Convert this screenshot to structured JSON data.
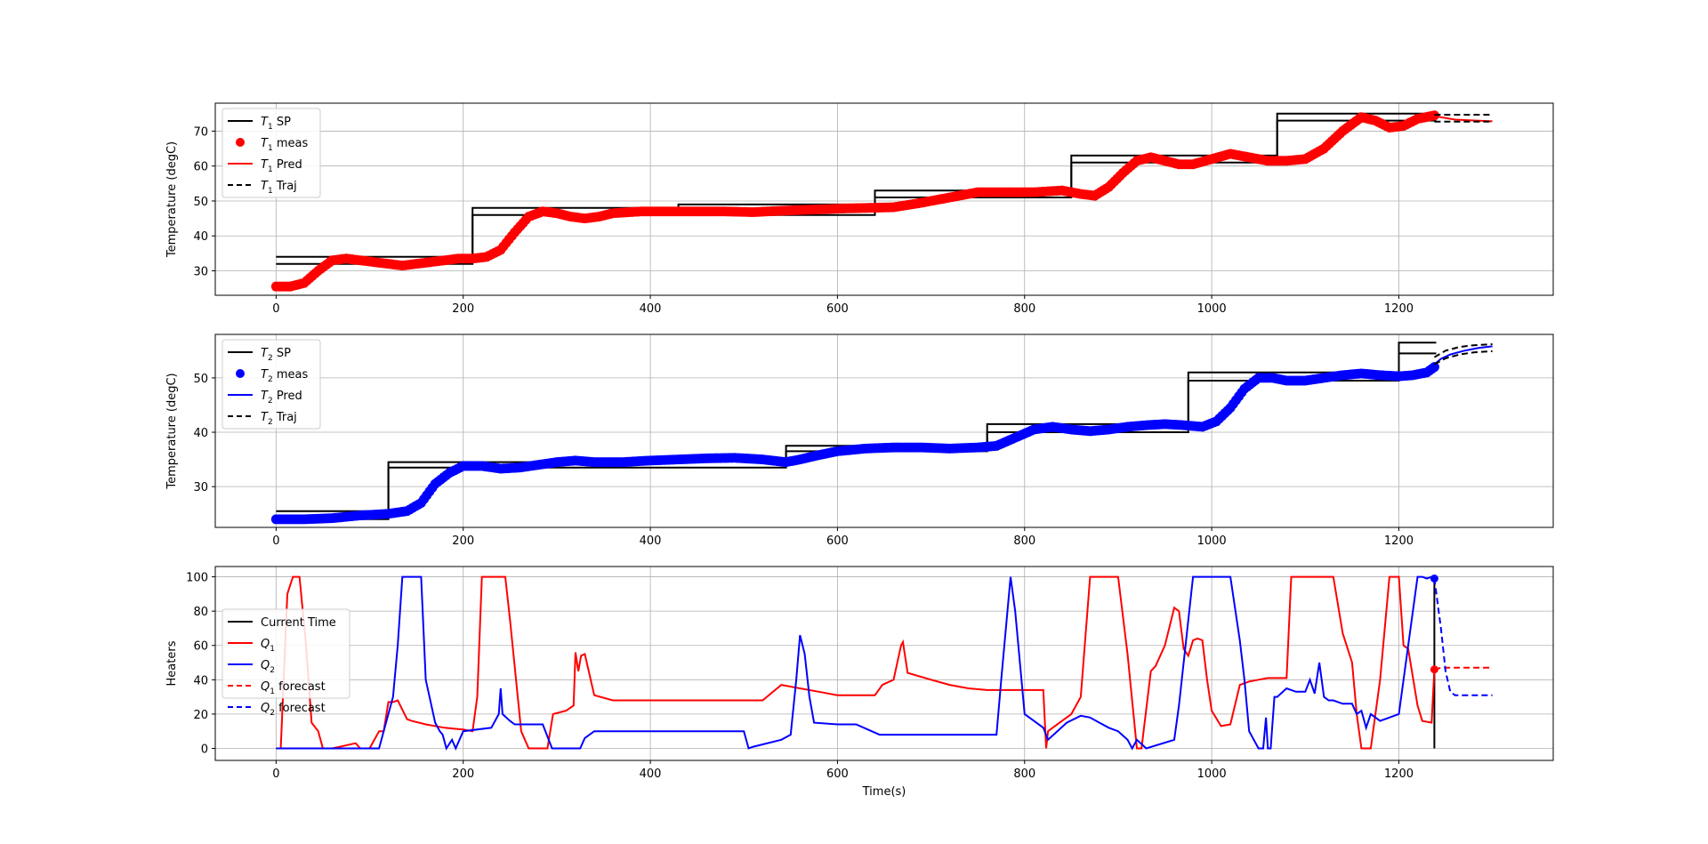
{
  "chart_data": [
    {
      "type": "line",
      "ylabel": "Temperature (degC)",
      "xlabel": "",
      "xlim": [
        -65,
        1365
      ],
      "ylim": [
        23,
        78
      ],
      "xticks": [
        0,
        200,
        400,
        600,
        800,
        1000,
        1200
      ],
      "yticks": [
        30,
        40,
        50,
        60,
        70
      ],
      "grid": true,
      "legend_position": "top-left",
      "series": [
        {
          "name": "T1 SP",
          "sub": "1",
          "lab": "SP",
          "style": "solid",
          "color": "#000000",
          "x": [
            0,
            210,
            210,
            640,
            640,
            850,
            850,
            1070,
            1070,
            1240
          ],
          "y": [
            32,
            32,
            46,
            46,
            51,
            51,
            61,
            61,
            73,
            73
          ]
        },
        {
          "name": "T1 SP (upper)",
          "style": "solid",
          "color": "#000000",
          "legend": false,
          "x": [
            0,
            210,
            210,
            430,
            430,
            640,
            640,
            850,
            850,
            1070,
            1070,
            1240
          ],
          "y": [
            34,
            34,
            48,
            48,
            49,
            49,
            53,
            53,
            63,
            63,
            75,
            75
          ]
        },
        {
          "name": "T1 meas",
          "sub": "1",
          "lab": "meas",
          "style": "markers",
          "color": "#ff0000",
          "x": [
            0,
            15,
            30,
            45,
            60,
            75,
            90,
            105,
            120,
            135,
            150,
            165,
            180,
            195,
            210,
            225,
            240,
            255,
            270,
            285,
            300,
            315,
            330,
            345,
            360,
            390,
            420,
            450,
            480,
            510,
            540,
            570,
            600,
            630,
            660,
            690,
            720,
            750,
            780,
            810,
            840,
            860,
            875,
            890,
            905,
            920,
            935,
            950,
            965,
            980,
            1000,
            1020,
            1040,
            1060,
            1080,
            1100,
            1120,
            1140,
            1160,
            1175,
            1190,
            1205,
            1220,
            1238
          ],
          "y": [
            25.5,
            25.5,
            26.5,
            30,
            33,
            33.5,
            33,
            32.5,
            32,
            31.5,
            32,
            32.5,
            33,
            33.5,
            33.5,
            34,
            36,
            41,
            45.5,
            47,
            46.5,
            45.5,
            45,
            45.5,
            46.5,
            47,
            47,
            47,
            47,
            46.8,
            47.2,
            47.5,
            47.8,
            48,
            48.2,
            49.5,
            51,
            52.5,
            52.5,
            52.5,
            53,
            52,
            51.5,
            54,
            58,
            61.5,
            62.5,
            61.5,
            60.5,
            60.5,
            62,
            63.5,
            62.5,
            61.5,
            61.5,
            62,
            65,
            70,
            74,
            73,
            71,
            71.5,
            73.5,
            74.5
          ]
        },
        {
          "name": "T1 Pred",
          "sub": "1",
          "lab": "Pred",
          "style": "solid",
          "color": "#ff0000",
          "x": [
            1238,
            1260,
            1300
          ],
          "y": [
            74.3,
            73.3,
            72.8
          ]
        },
        {
          "name": "T1 Traj",
          "sub": "1",
          "lab": "Traj",
          "style": "dashed",
          "color": "#000000",
          "x": [
            1238,
            1300
          ],
          "y": [
            72.7,
            72.7
          ]
        },
        {
          "name": "T1 Traj (upper)",
          "style": "dashed",
          "color": "#000000",
          "legend": false,
          "x": [
            1238,
            1300
          ],
          "y": [
            74.7,
            74.7
          ]
        }
      ]
    },
    {
      "type": "line",
      "ylabel": "Temperature (degC)",
      "xlabel": "",
      "xlim": [
        -65,
        1365
      ],
      "ylim": [
        22.5,
        58
      ],
      "xticks": [
        0,
        200,
        400,
        600,
        800,
        1000,
        1200
      ],
      "yticks": [
        30,
        40,
        50
      ],
      "grid": true,
      "legend_position": "top-left",
      "series": [
        {
          "name": "T2 SP",
          "sub": "2",
          "lab": "SP",
          "style": "solid",
          "color": "#000000",
          "x": [
            0,
            120,
            120,
            545,
            545,
            760,
            760,
            975,
            975,
            1200,
            1200,
            1240
          ],
          "y": [
            24,
            24,
            33.5,
            33.5,
            36.5,
            36.5,
            40,
            40,
            49.5,
            49.5,
            54.5,
            54.5
          ]
        },
        {
          "name": "T2 SP (upper)",
          "style": "solid",
          "color": "#000000",
          "legend": false,
          "x": [
            0,
            120,
            120,
            330,
            330,
            545,
            545,
            760,
            760,
            975,
            975,
            1200,
            1200,
            1240
          ],
          "y": [
            25.5,
            25.5,
            34.5,
            34.5,
            35,
            35,
            37.5,
            37.5,
            41.5,
            41.5,
            51,
            51,
            56.5,
            56.5
          ]
        },
        {
          "name": "T2 meas",
          "sub": "2",
          "lab": "meas",
          "style": "markers",
          "color": "#0000ff",
          "x": [
            0,
            30,
            60,
            90,
            120,
            140,
            155,
            170,
            185,
            200,
            220,
            240,
            260,
            280,
            300,
            320,
            340,
            370,
            400,
            430,
            460,
            490,
            520,
            545,
            560,
            580,
            600,
            630,
            660,
            690,
            720,
            750,
            770,
            790,
            810,
            830,
            850,
            870,
            890,
            910,
            930,
            950,
            970,
            990,
            1005,
            1020,
            1035,
            1050,
            1065,
            1080,
            1100,
            1120,
            1140,
            1160,
            1180,
            1200,
            1215,
            1230,
            1238
          ],
          "y": [
            24,
            24,
            24.2,
            24.7,
            25,
            25.5,
            27,
            30.5,
            32.5,
            33.8,
            33.8,
            33.3,
            33.5,
            34,
            34.5,
            34.8,
            34.5,
            34.5,
            34.8,
            35,
            35.2,
            35.3,
            35,
            34.5,
            35,
            35.8,
            36.5,
            37,
            37.2,
            37.2,
            37,
            37.2,
            37.5,
            39,
            40.5,
            41,
            40.5,
            40.2,
            40.5,
            41,
            41.3,
            41.5,
            41.3,
            41,
            42,
            44.5,
            48,
            50,
            50,
            49.5,
            49.5,
            50,
            50.5,
            50.8,
            50.5,
            50.3,
            50.5,
            51,
            52
          ]
        },
        {
          "name": "T2 Pred",
          "sub": "2",
          "lab": "Pred",
          "style": "solid",
          "color": "#0000ff",
          "x": [
            1238,
            1245,
            1255,
            1270,
            1285,
            1300
          ],
          "y": [
            52.5,
            53.5,
            54.3,
            55,
            55.5,
            55.8
          ]
        },
        {
          "name": "T2 Traj",
          "sub": "2",
          "lab": "Traj",
          "style": "dashed",
          "color": "#000000",
          "x": [
            1238,
            1250,
            1265,
            1280,
            1300
          ],
          "y": [
            52.5,
            53.6,
            54.3,
            54.7,
            54.9
          ]
        },
        {
          "name": "T2 Traj (upper)",
          "style": "dashed",
          "color": "#000000",
          "legend": false,
          "x": [
            1238,
            1250,
            1265,
            1280,
            1300
          ],
          "y": [
            53.8,
            55,
            55.7,
            56,
            56.2
          ]
        }
      ]
    },
    {
      "type": "line",
      "ylabel": "Heaters",
      "xlabel": "Time(s)",
      "xlim": [
        -65,
        1365
      ],
      "ylim": [
        -7,
        106
      ],
      "xticks": [
        0,
        200,
        400,
        600,
        800,
        1000,
        1200
      ],
      "yticks": [
        0,
        20,
        40,
        60,
        80,
        100
      ],
      "grid": true,
      "legend_position": "center-left",
      "series": [
        {
          "name": "Current Time",
          "lab": "Current Time",
          "style": "solid",
          "color": "#000000",
          "x": [
            1238,
            1238
          ],
          "y": [
            0,
            100
          ]
        },
        {
          "name": "Q1",
          "sub": "1",
          "lab": "",
          "style": "solid",
          "color": "#ff0000",
          "x": [
            0,
            5,
            12,
            18,
            25,
            32,
            38,
            45,
            50,
            60,
            85,
            90,
            100,
            110,
            115,
            120,
            125,
            130,
            140,
            145,
            160,
            180,
            200,
            210,
            215,
            220,
            225,
            245,
            250,
            262,
            270,
            290,
            296,
            310,
            318,
            320,
            323,
            326,
            330,
            340,
            360,
            400,
            520,
            540,
            560,
            580,
            600,
            640,
            648,
            660,
            668,
            670,
            675,
            700,
            720,
            740,
            760,
            800,
            820,
            823,
            825,
            830,
            850,
            860,
            870,
            900,
            910,
            920,
            925,
            935,
            940,
            950,
            960,
            965,
            970,
            975,
            980,
            985,
            990,
            995,
            1000,
            1010,
            1020,
            1030,
            1040,
            1050,
            1060,
            1080,
            1085,
            1095,
            1130,
            1140,
            1150,
            1155,
            1160,
            1170,
            1180,
            1190,
            1200,
            1205,
            1210,
            1220,
            1225,
            1235,
            1238
          ],
          "y": [
            0,
            0,
            90,
            100,
            100,
            60,
            15,
            10,
            0,
            0,
            3,
            0,
            0,
            10,
            10,
            27,
            27,
            28,
            17,
            16,
            14,
            12,
            11,
            10,
            30,
            100,
            100,
            100,
            75,
            10,
            0,
            0,
            20,
            22,
            25,
            56,
            45,
            54,
            55,
            31,
            28,
            28,
            28,
            37,
            35,
            33,
            31,
            31,
            37,
            40,
            60,
            62,
            44,
            40,
            37,
            35,
            34,
            34,
            34,
            0,
            10,
            12,
            20,
            30,
            100,
            100,
            55,
            0,
            0,
            45,
            48,
            60,
            82,
            80,
            58,
            54,
            63,
            64,
            63,
            40,
            22,
            13,
            14,
            37,
            39,
            40,
            41,
            41,
            100,
            100,
            100,
            67,
            50,
            20,
            0,
            0,
            40,
            100,
            100,
            60,
            58,
            25,
            16,
            15,
            46
          ]
        },
        {
          "name": "Q2",
          "sub": "2",
          "lab": "",
          "style": "solid",
          "color": "#0000ff",
          "x": [
            0,
            110,
            125,
            130,
            135,
            140,
            155,
            160,
            170,
            175,
            178,
            182,
            188,
            192,
            200,
            230,
            238,
            240,
            242,
            250,
            255,
            285,
            295,
            325,
            330,
            340,
            350,
            500,
            505,
            510,
            540,
            550,
            556,
            560,
            565,
            570,
            575,
            600,
            620,
            645,
            650,
            770,
            775,
            785,
            790,
            800,
            810,
            820,
            825,
            835,
            845,
            860,
            870,
            880,
            890,
            900,
            910,
            915,
            920,
            930,
            960,
            965,
            972,
            980,
            990,
            1000,
            1020,
            1030,
            1035,
            1040,
            1050,
            1055,
            1058,
            1060,
            1063,
            1067,
            1070,
            1080,
            1090,
            1100,
            1105,
            1110,
            1115,
            1120,
            1125,
            1130,
            1140,
            1150,
            1155,
            1160,
            1165,
            1170,
            1180,
            1200,
            1210,
            1220,
            1225,
            1230,
            1235,
            1238
          ],
          "y": [
            0,
            0,
            30,
            60,
            100,
            100,
            100,
            40,
            15,
            10,
            8,
            0,
            5,
            0,
            10,
            12,
            20,
            35,
            20,
            16,
            14,
            14,
            0,
            0,
            6,
            10,
            10,
            10,
            0,
            1,
            5,
            8,
            40,
            66,
            55,
            30,
            15,
            14,
            14,
            8,
            8,
            8,
            40,
            100,
            80,
            20,
            16,
            12,
            5,
            10,
            15,
            19,
            18,
            15,
            12,
            10,
            5,
            0,
            5,
            0,
            5,
            25,
            60,
            100,
            100,
            100,
            100,
            63,
            40,
            10,
            0,
            0,
            18,
            0,
            0,
            30,
            30,
            35,
            33,
            33,
            40,
            32,
            50,
            30,
            28,
            28,
            26,
            26,
            20,
            22,
            12,
            20,
            16,
            20,
            60,
            100,
            100,
            99,
            100,
            99
          ]
        },
        {
          "name": "Q1 forecast",
          "sub": "1",
          "lab": "forecast",
          "style": "dashed",
          "color": "#ff0000",
          "x": [
            1238,
            1245,
            1250,
            1300
          ],
          "y": [
            46,
            47,
            47,
            47
          ]
        },
        {
          "name": "Q2 forecast",
          "sub": "2",
          "lab": "forecast",
          "style": "dashed",
          "color": "#0000ff",
          "x": [
            1238,
            1245,
            1250,
            1255,
            1260,
            1300
          ],
          "y": [
            99,
            70,
            45,
            33,
            31,
            31
          ]
        }
      ],
      "markers": [
        {
          "x": 1238,
          "y": 46,
          "color": "#ff0000"
        },
        {
          "x": 1238,
          "y": 99,
          "color": "#0000ff"
        }
      ]
    }
  ]
}
